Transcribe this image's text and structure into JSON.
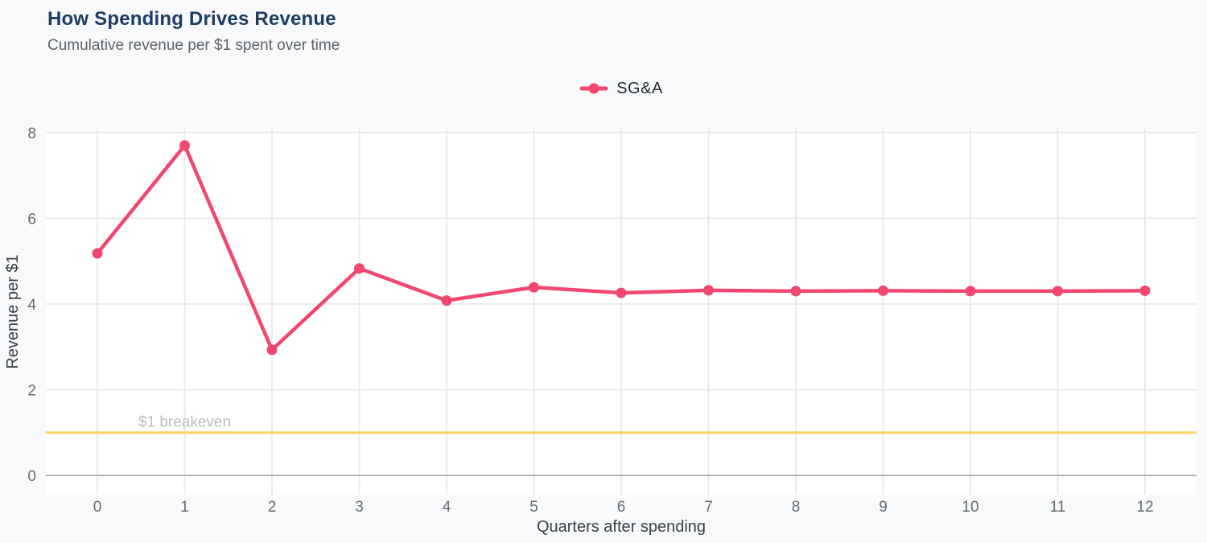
{
  "header": {
    "title": "How Spending Drives Revenue",
    "subtitle": "Cumulative revenue per $1 spent over time"
  },
  "legend": {
    "position": "top-center",
    "items": [
      {
        "label": "SG&A",
        "color": "#EF476F"
      }
    ]
  },
  "chart_data": {
    "type": "line",
    "title": "How Spending Drives Revenue",
    "subtitle": "Cumulative revenue per $1 spent over time",
    "xlabel": "Quarters after spending",
    "ylabel": "Revenue per $1",
    "x": [
      0,
      1,
      2,
      3,
      4,
      5,
      6,
      7,
      8,
      9,
      10,
      11,
      12
    ],
    "series": [
      {
        "name": "SG&A",
        "color": "#EF476F",
        "values": [
          5.18,
          7.7,
          2.93,
          4.83,
          4.08,
          4.39,
          4.26,
          4.32,
          4.3,
          4.31,
          4.3,
          4.3,
          4.31
        ]
      }
    ],
    "xticks": [
      0,
      1,
      2,
      3,
      4,
      5,
      6,
      7,
      8,
      9,
      10,
      11,
      12
    ],
    "yticks": [
      0,
      2,
      4,
      6,
      8
    ],
    "xlim": [
      -0.59,
      12.59
    ],
    "ylim": [
      -0.45,
      8.09
    ],
    "grid": true,
    "legend_position": "top-center",
    "reference_line": {
      "y": 1,
      "label": "$1 breakeven",
      "label_x": 1,
      "color": "#FFD166",
      "label_color": "#b9bdc1"
    },
    "style": {
      "page_bg": "#f8f9fa",
      "plot_bg": "#ffffff",
      "grid_color": "#e9ebed",
      "zero_line_color": "#b2b6ba",
      "tick_color": "#666b70",
      "axis_title_color": "#3a3f45",
      "title_color": "#1e3d66",
      "subtitle_color": "#5f6368",
      "legend_text_color": "#24293a"
    }
  }
}
